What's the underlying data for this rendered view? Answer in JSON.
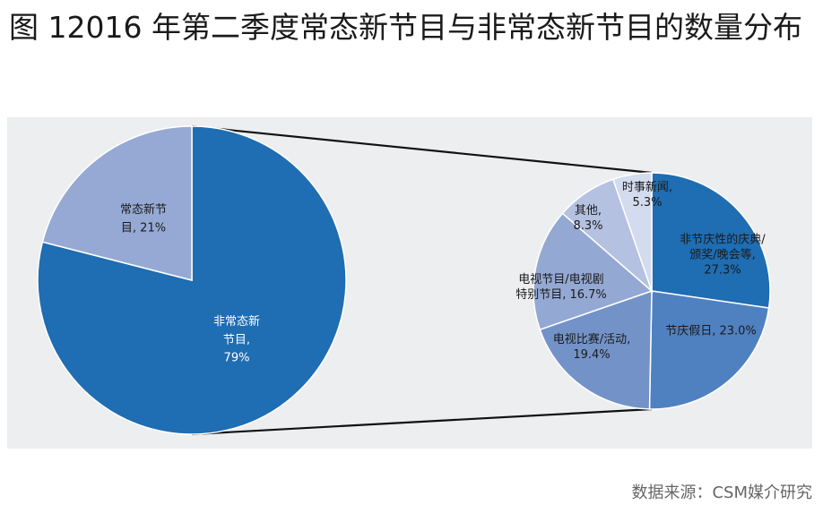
{
  "header": {
    "title": "图 12016 年第二季度常态新节目与非常态新节目的数量分布"
  },
  "footer": {
    "source": "数据来源：CSM媒介研究"
  },
  "chart_data": [
    {
      "type": "pie",
      "slices": [
        {
          "label_lines": [
            "非常态新",
            "节目,",
            "79%"
          ],
          "value": 79,
          "color": "#1f6db2",
          "text_color": "#ffffff"
        },
        {
          "label_lines": [
            "常态新节",
            "目, 21%"
          ],
          "value": 21,
          "color": "#95a9d4",
          "text_color": "#1a1a1a"
        }
      ]
    },
    {
      "type": "pie",
      "slices": [
        {
          "label_lines": [
            "非节庆性的庆典/",
            "颁奖/晚会等,",
            "27.3%"
          ],
          "value": 27.3,
          "color": "#1f6db2",
          "text_color": "#1a1a1a"
        },
        {
          "label_lines": [
            "节庆假日, 23.0%"
          ],
          "value": 23.0,
          "color": "#4f81c1",
          "text_color": "#1a1a1a"
        },
        {
          "label_lines": [
            "电视比赛/活动,",
            "19.4%"
          ],
          "value": 19.4,
          "color": "#7393c8",
          "text_color": "#1a1a1a"
        },
        {
          "label_lines": [
            "电视节目/电视剧",
            "特别节目, 16.7%"
          ],
          "value": 16.7,
          "color": "#93a8d3",
          "text_color": "#1a1a1a"
        },
        {
          "label_lines": [
            "其他,",
            "8.3%"
          ],
          "value": 8.3,
          "color": "#b4c1e0",
          "text_color": "#1a1a1a"
        },
        {
          "label_lines": [
            "时事新闻,",
            "5.3%"
          ],
          "value": 5.3,
          "color": "#d3dbee",
          "text_color": "#1a1a1a"
        }
      ]
    }
  ]
}
